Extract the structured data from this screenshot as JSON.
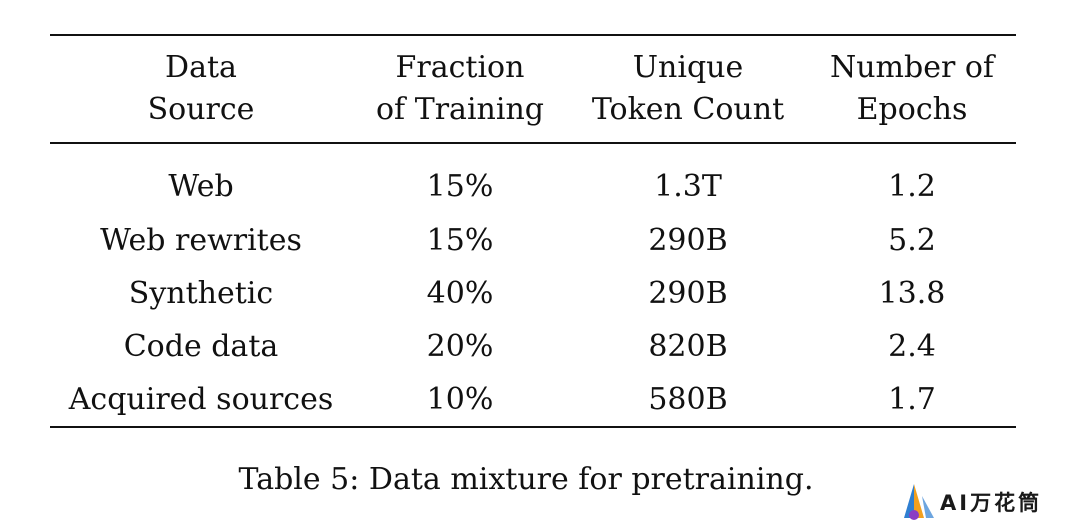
{
  "table": {
    "headers": [
      [
        "Data",
        "Source"
      ],
      [
        "Fraction",
        "of Training"
      ],
      [
        "Unique",
        "Token Count"
      ],
      [
        "Number of",
        "Epochs"
      ]
    ],
    "rows": [
      [
        "Web",
        "15%",
        "1.3T",
        "1.2"
      ],
      [
        "Web rewrites",
        "15%",
        "290B",
        "5.2"
      ],
      [
        "Synthetic",
        "40%",
        "290B",
        "13.8"
      ],
      [
        "Code data",
        "20%",
        "820B",
        "2.4"
      ],
      [
        "Acquired sources",
        "10%",
        "580B",
        "1.7"
      ]
    ]
  },
  "caption": "Table 5: Data mixture for pretraining.",
  "watermark": {
    "text": "AI万花筒",
    "icon": "watermark-logo-icon",
    "colors": {
      "blue": "#2f7fd1",
      "orange": "#f2a01f",
      "purple": "#8a3cc4"
    }
  }
}
